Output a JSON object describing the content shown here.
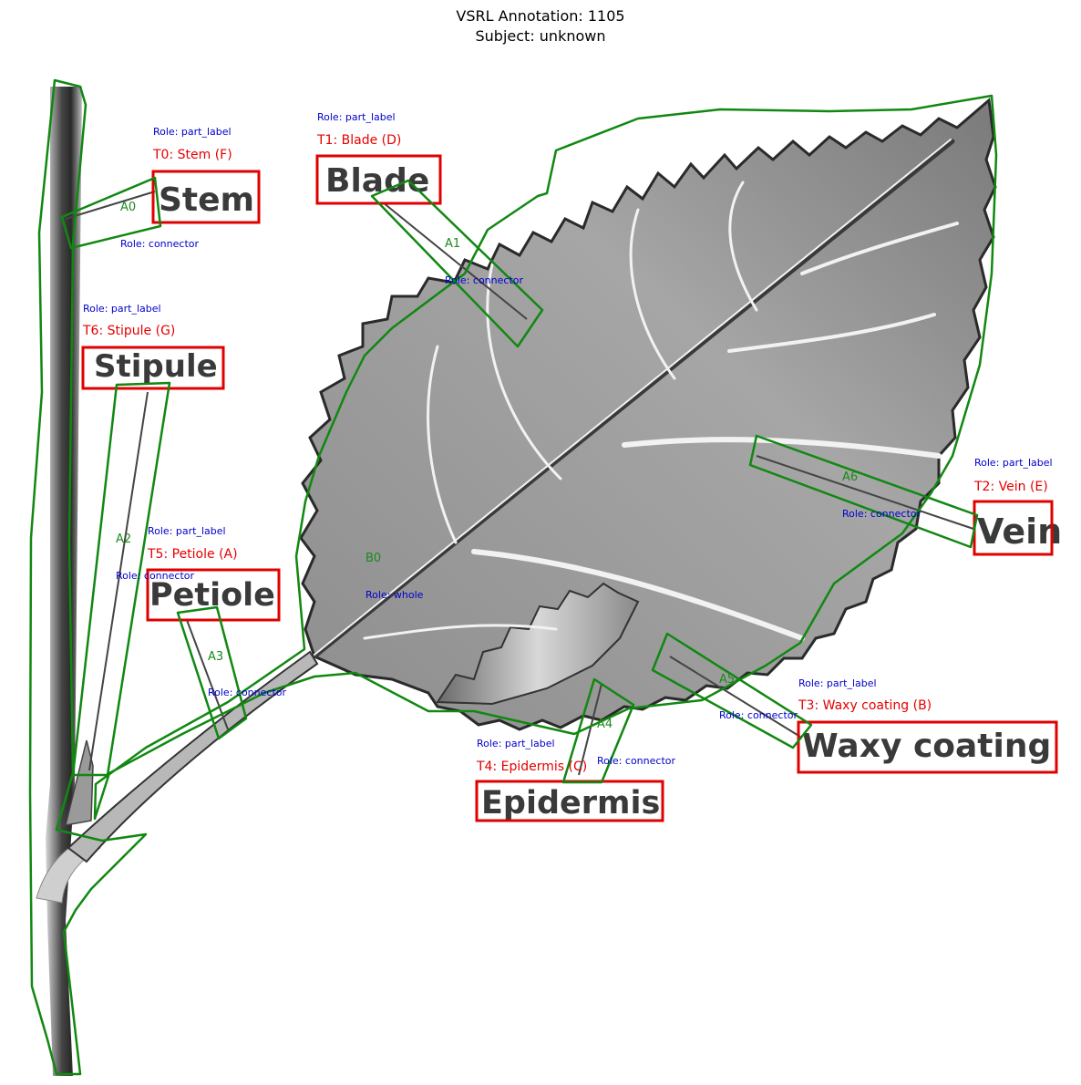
{
  "header": {
    "title": "VSRL Annotation: 1105",
    "subtitle": "Subject: unknown"
  },
  "diagram_words": {
    "stem": "Stem",
    "blade": "Blade",
    "stipule": "Stipule",
    "petiole": "Petiole",
    "vein": "Vein",
    "waxy_coating": "Waxy coating",
    "epidermis": "Epidermis"
  },
  "annotations": {
    "text_labels": [
      {
        "id": "T0",
        "tag": "T0: Stem (F)",
        "role": "Role: part_label"
      },
      {
        "id": "T1",
        "tag": "T1: Blade (D)",
        "role": "Role: part_label"
      },
      {
        "id": "T2",
        "tag": "T2: Vein (E)",
        "role": "Role: part_label"
      },
      {
        "id": "T3",
        "tag": "T3: Waxy coating (B)",
        "role": "Role: part_label"
      },
      {
        "id": "T4",
        "tag": "T4: Epidermis (C)",
        "role": "Role: part_label"
      },
      {
        "id": "T5",
        "tag": "T5: Petiole (A)",
        "role": "Role: part_label"
      },
      {
        "id": "T6",
        "tag": "T6: Stipule (G)",
        "role": "Role: part_label"
      }
    ],
    "connectors": [
      {
        "id": "A0",
        "role": "Role: connector"
      },
      {
        "id": "A1",
        "role": "Role: connector"
      },
      {
        "id": "A2",
        "role": "Role: connector"
      },
      {
        "id": "A3",
        "role": "Role: connector"
      },
      {
        "id": "A4",
        "role": "Role: connector"
      },
      {
        "id": "A5",
        "role": "Role: connector"
      },
      {
        "id": "A6",
        "role": "Role: connector"
      }
    ],
    "blobs": [
      {
        "id": "B0",
        "role": "Role: whole"
      }
    ]
  },
  "colors": {
    "label_box": "#e00000",
    "polygon": "#118811",
    "role_text": "#0000cc",
    "leaf_fill": "#9a9a9a",
    "leaf_edge": "#2a2a2a"
  }
}
